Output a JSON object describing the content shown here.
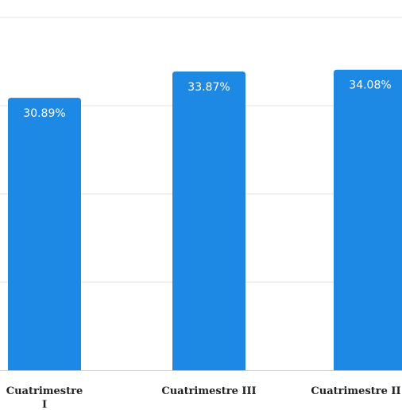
{
  "chart_data": {
    "type": "bar",
    "categories": [
      "Cuatrimestre I",
      "Cuatrimestre III",
      "Cuatrimestre II"
    ],
    "category_lines": [
      [
        "Cuatrimestre",
        "I"
      ],
      [
        "Cuatrimestre III"
      ],
      [
        "Cuatrimestre II"
      ]
    ],
    "values": [
      30.89,
      33.87,
      34.08
    ],
    "data_labels": [
      "30.89%",
      "33.87%",
      "34.08%"
    ],
    "value_format": "percent",
    "ylim": [
      0,
      40
    ],
    "grid": true,
    "legend": "none",
    "title": "",
    "xlabel": "",
    "ylabel": ""
  },
  "colors": {
    "bar": "#1e88e5",
    "grid": "#e6e6e6",
    "axis": "#cccccc",
    "label_text": "#222222",
    "data_label_text": "#ffffff"
  }
}
